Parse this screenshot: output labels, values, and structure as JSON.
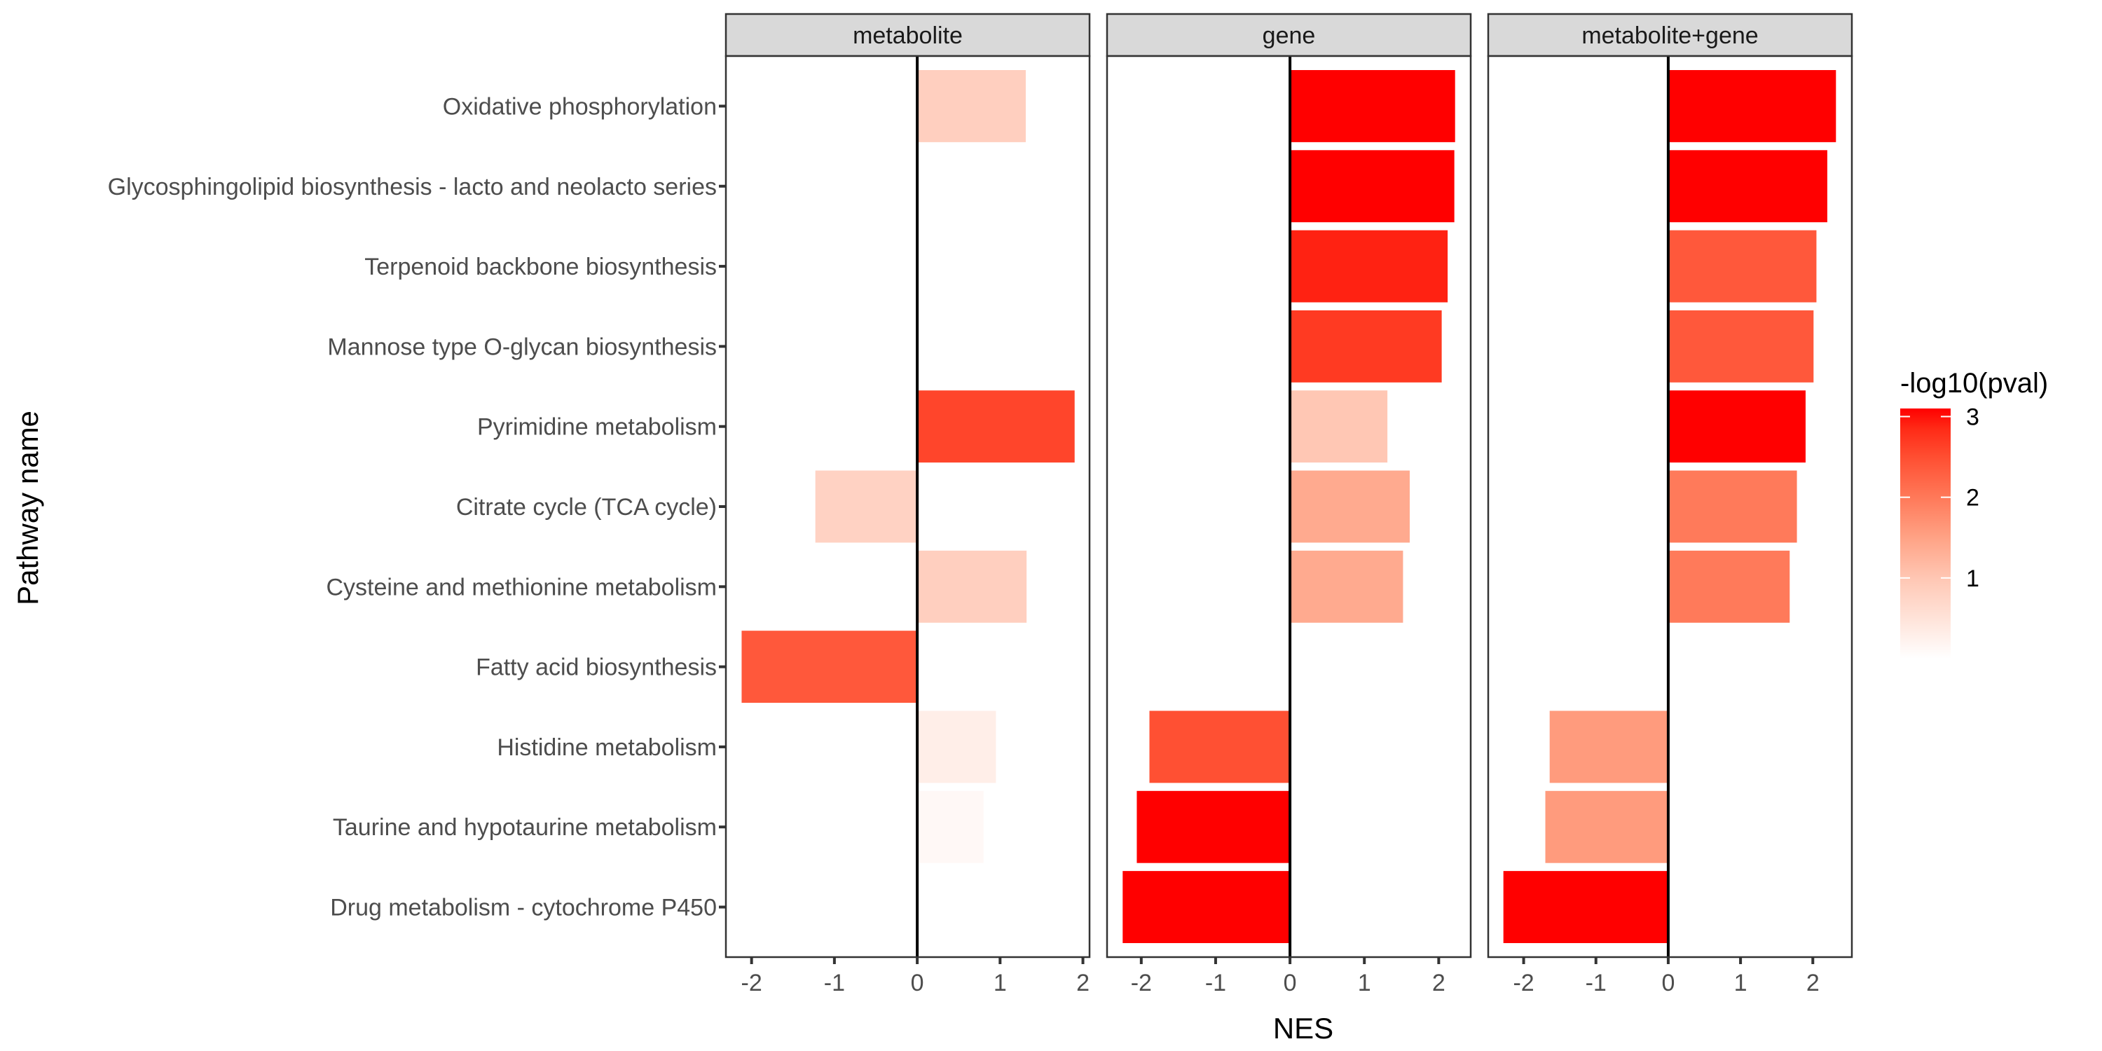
{
  "chart_data": {
    "type": "bar",
    "orientation": "horizontal",
    "xlabel": "NES",
    "ylabel": "Pathway name",
    "categories": [
      "Oxidative phosphorylation",
      "Glycosphingolipid biosynthesis - lacto and neolacto series",
      "Terpenoid backbone biosynthesis",
      "Mannose type O-glycan biosynthesis",
      "Pyrimidine metabolism",
      "Citrate cycle (TCA cycle)",
      "Cysteine and methionine metabolism",
      "Fatty acid biosynthesis",
      "Histidine metabolism",
      "Taurine and hypotaurine metabolism",
      "Drug metabolism - cytochrome P450"
    ],
    "facets": [
      {
        "name": "metabolite",
        "xlim": [
          -2.31,
          2.08
        ],
        "x_ticks": [
          -2,
          -1,
          0,
          1,
          2
        ],
        "values": [
          1.31,
          null,
          null,
          null,
          1.9,
          -1.23,
          1.32,
          -2.12,
          0.95,
          0.8,
          null
        ],
        "neglog10_pval": [
          0.85,
          null,
          null,
          null,
          2.6,
          0.8,
          0.85,
          2.4,
          0.3,
          0.12,
          null
        ]
      },
      {
        "name": "gene",
        "xlim": [
          -2.46,
          2.43
        ],
        "x_ticks": [
          -2,
          -1,
          0,
          1,
          2
        ],
        "values": [
          2.22,
          2.21,
          2.12,
          2.04,
          1.31,
          1.61,
          1.52,
          null,
          -1.89,
          -2.06,
          -2.25
        ],
        "neglog10_pval": [
          3.1,
          3.1,
          2.9,
          2.7,
          1.0,
          1.4,
          1.4,
          null,
          2.5,
          3.1,
          3.1
        ]
      },
      {
        "name": "metabolite+gene",
        "xlim": [
          -2.49,
          2.54
        ],
        "x_ticks": [
          -2,
          -1,
          0,
          1,
          2
        ],
        "values": [
          2.32,
          2.2,
          2.05,
          2.01,
          1.9,
          1.78,
          1.68,
          null,
          -1.64,
          -1.7,
          -2.28
        ],
        "neglog10_pval": [
          3.1,
          3.1,
          2.4,
          2.4,
          3.1,
          2.0,
          2.0,
          null,
          1.6,
          1.6,
          3.1
        ]
      }
    ],
    "legend": {
      "title": "-log10(pval)",
      "position": "right",
      "type": "continuous",
      "range": [
        0,
        3.1
      ],
      "ticks": [
        1,
        2,
        3
      ],
      "tick_labels": [
        "1",
        "2",
        "3"
      ],
      "low_color": "#ffffff",
      "high_color": "#ff0000"
    },
    "zero_line": true,
    "grid": false
  }
}
